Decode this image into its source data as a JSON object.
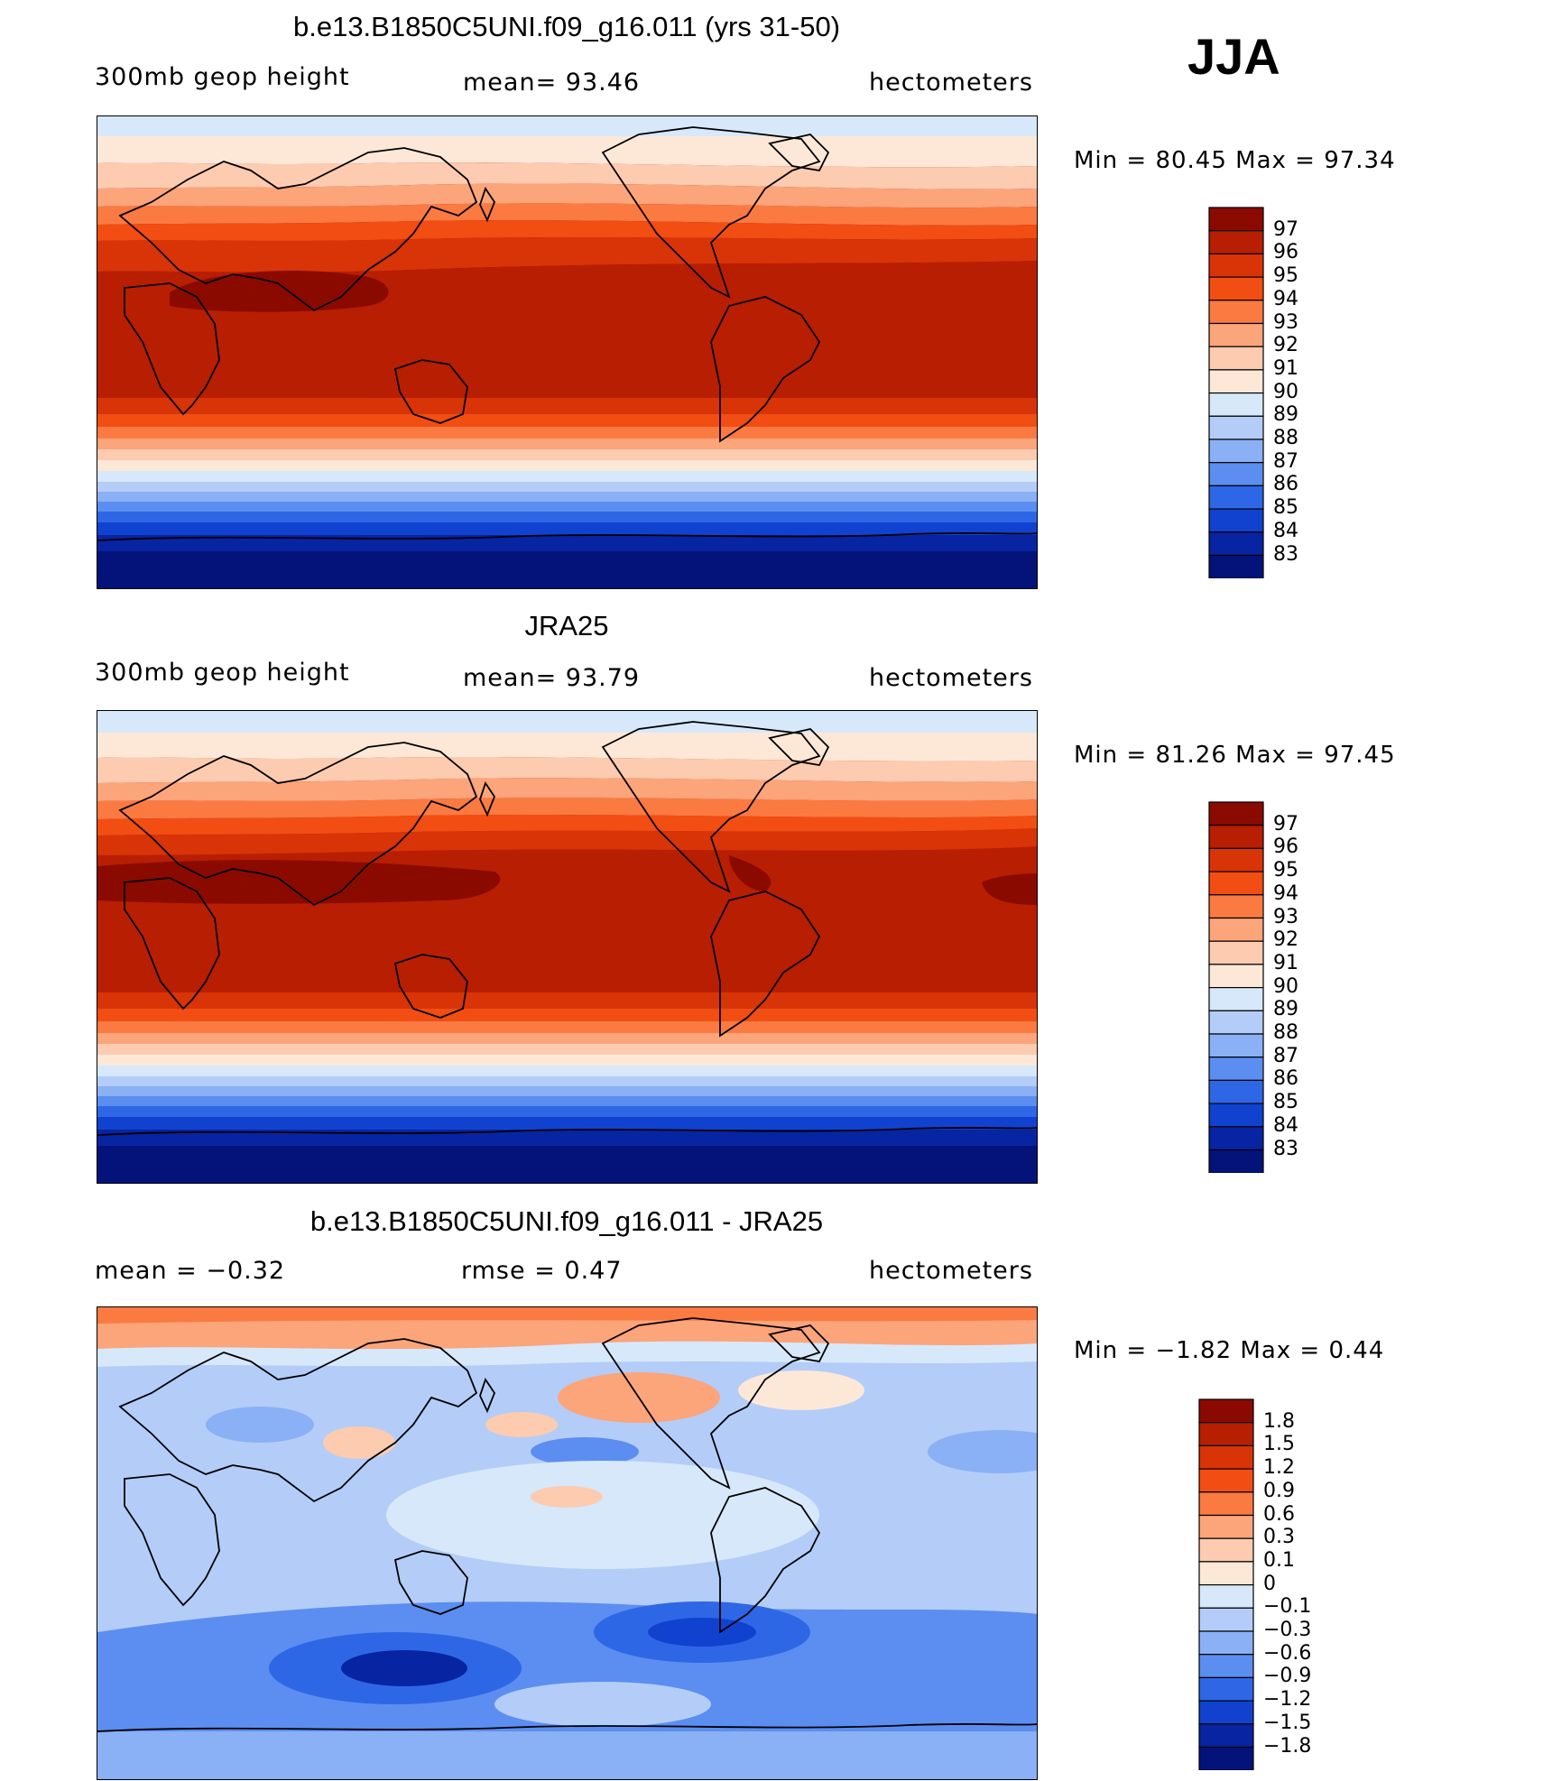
{
  "season": "JJA",
  "panels": [
    {
      "id": "model",
      "title": "b.e13.B1850C5UNI.f09_g16.011 (yrs 31-50)",
      "left_label": "300mb  geop  height",
      "center_label": "mean=   93.46",
      "right_label": "hectometers",
      "minmax": "Min  =    80.45  Max  =    97.34",
      "colorbar_labels": [
        "97",
        "96",
        "95",
        "94",
        "93",
        "92",
        "91",
        "90",
        "89",
        "88",
        "87",
        "86",
        "85",
        "84",
        "83"
      ],
      "colorbar_colors": [
        "#8b0a00",
        "#b81e02",
        "#d83408",
        "#f24d12",
        "#fb7a42",
        "#fca47a",
        "#fdcbb0",
        "#fde8d8",
        "#d7e8fb",
        "#b3cdf8",
        "#8ab0f5",
        "#5b8ef0",
        "#2e67e6",
        "#1142cf",
        "#0724a2",
        "#04137a"
      ]
    },
    {
      "id": "obs",
      "title": "JRA25",
      "left_label": "300mb  geop  height",
      "center_label": "mean=   93.79",
      "right_label": "hectometers",
      "minmax": "Min  =    81.26  Max  =    97.45",
      "colorbar_labels": [
        "97",
        "96",
        "95",
        "94",
        "93",
        "92",
        "91",
        "90",
        "89",
        "88",
        "87",
        "86",
        "85",
        "84",
        "83"
      ],
      "colorbar_colors": [
        "#8b0a00",
        "#b81e02",
        "#d83408",
        "#f24d12",
        "#fb7a42",
        "#fca47a",
        "#fdcbb0",
        "#fde8d8",
        "#d7e8fb",
        "#b3cdf8",
        "#8ab0f5",
        "#5b8ef0",
        "#2e67e6",
        "#1142cf",
        "#0724a2",
        "#04137a"
      ]
    },
    {
      "id": "diff",
      "title": "b.e13.B1850C5UNI.f09_g16.011 - JRA25",
      "left_label": "mean  =    −0.32",
      "center_label": "rmse  =     0.47",
      "right_label": "hectometers",
      "minmax": "Min  =    −1.82  Max  =      0.44",
      "colorbar_labels": [
        "1.8",
        "1.5",
        "1.2",
        "0.9",
        "0.6",
        "0.3",
        "0.1",
        "0",
        "−0.1",
        "−0.3",
        "−0.6",
        "−0.9",
        "−1.2",
        "−1.5",
        "−1.8"
      ],
      "colorbar_colors": [
        "#8b0a00",
        "#b81e02",
        "#d83408",
        "#f24d12",
        "#fb7a42",
        "#fca47a",
        "#fdcbb0",
        "#fde8d8",
        "#d7e8fb",
        "#b3cdf8",
        "#8ab0f5",
        "#5b8ef0",
        "#2e67e6",
        "#1142cf",
        "#0724a2",
        "#04137a"
      ]
    }
  ]
}
